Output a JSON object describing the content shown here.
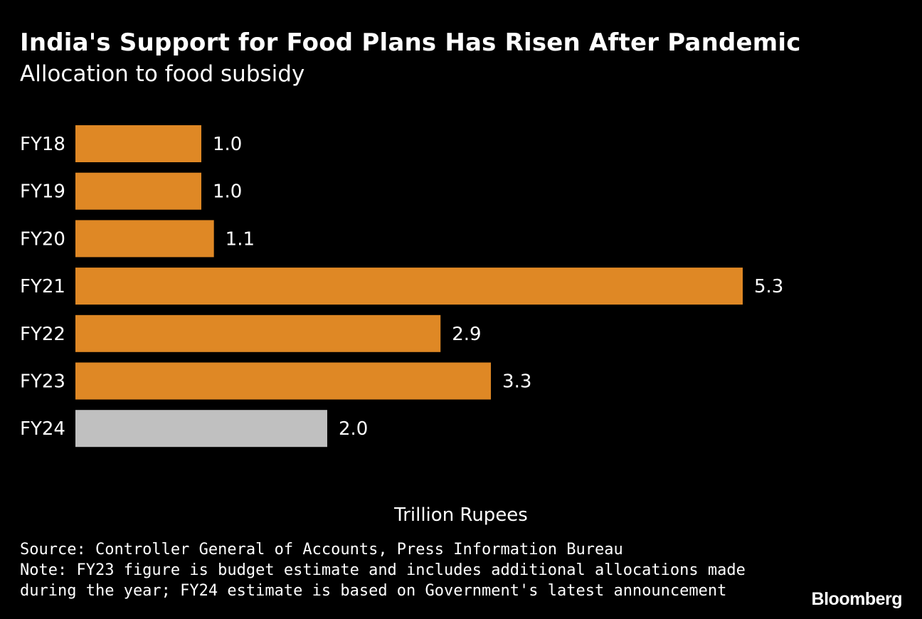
{
  "header": {
    "title": "India's Support for Food Plans Has Risen After Pandemic",
    "subtitle": "Allocation to food subsidy"
  },
  "chart_data": {
    "type": "bar",
    "orientation": "horizontal",
    "categories": [
      "FY18",
      "FY19",
      "FY20",
      "FY21",
      "FY22",
      "FY23",
      "FY24"
    ],
    "values": [
      1.0,
      1.0,
      1.1,
      5.3,
      2.9,
      3.3,
      2.0
    ],
    "value_labels": [
      "1.0",
      "1.0",
      "1.1",
      "5.3",
      "2.9",
      "3.3",
      "2.0"
    ],
    "xlabel": "Trillion Rupees",
    "xlim": [
      0,
      5.3
    ],
    "grid": false,
    "legend": "none",
    "colors": {
      "actual": "#df8825",
      "estimate": "#c0c0c0"
    },
    "highlight_category": "FY24"
  },
  "footer": {
    "source": "Source: Controller General of Accounts, Press Information Bureau",
    "note": "Note: FY23 figure is budget estimate and includes additional allocations made during the year; FY24 estimate is based on Government's latest announcement",
    "brand": "Bloomberg"
  }
}
